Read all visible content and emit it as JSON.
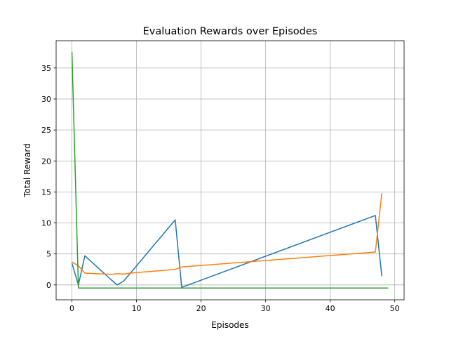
{
  "chart_data": {
    "type": "line",
    "title": "Evaluation Rewards over Episodes",
    "xlabel": "Episodes",
    "ylabel": "Total Reward",
    "xlim": [
      -2.45,
      51.45
    ],
    "ylim": [
      -2.4,
      39.4
    ],
    "xticks": [
      0,
      10,
      20,
      30,
      40,
      50
    ],
    "yticks": [
      0,
      5,
      10,
      15,
      20,
      25,
      30,
      35
    ],
    "grid": true,
    "legend": "none",
    "series": [
      {
        "color": "#1f77b4",
        "x": [
          0,
          1,
          2,
          6,
          7,
          8,
          16,
          17,
          47,
          48
        ],
        "y": [
          3.5,
          0.0,
          4.7,
          0.9,
          0.0,
          0.6,
          10.5,
          -0.4,
          11.2,
          1.4
        ]
      },
      {
        "color": "#ff7f0e",
        "x": [
          0,
          1,
          2,
          6,
          7,
          8,
          9,
          16,
          17,
          47,
          48
        ],
        "y": [
          3.7,
          3.1,
          1.9,
          1.7,
          1.8,
          1.75,
          1.9,
          2.5,
          2.9,
          5.3,
          14.8
        ]
      },
      {
        "color": "#2ca02c",
        "x": [
          0,
          1,
          2,
          10,
          20,
          30,
          40,
          49
        ],
        "y": [
          37.6,
          -0.5,
          -0.5,
          -0.5,
          -0.5,
          -0.5,
          -0.5,
          -0.5
        ]
      }
    ]
  }
}
